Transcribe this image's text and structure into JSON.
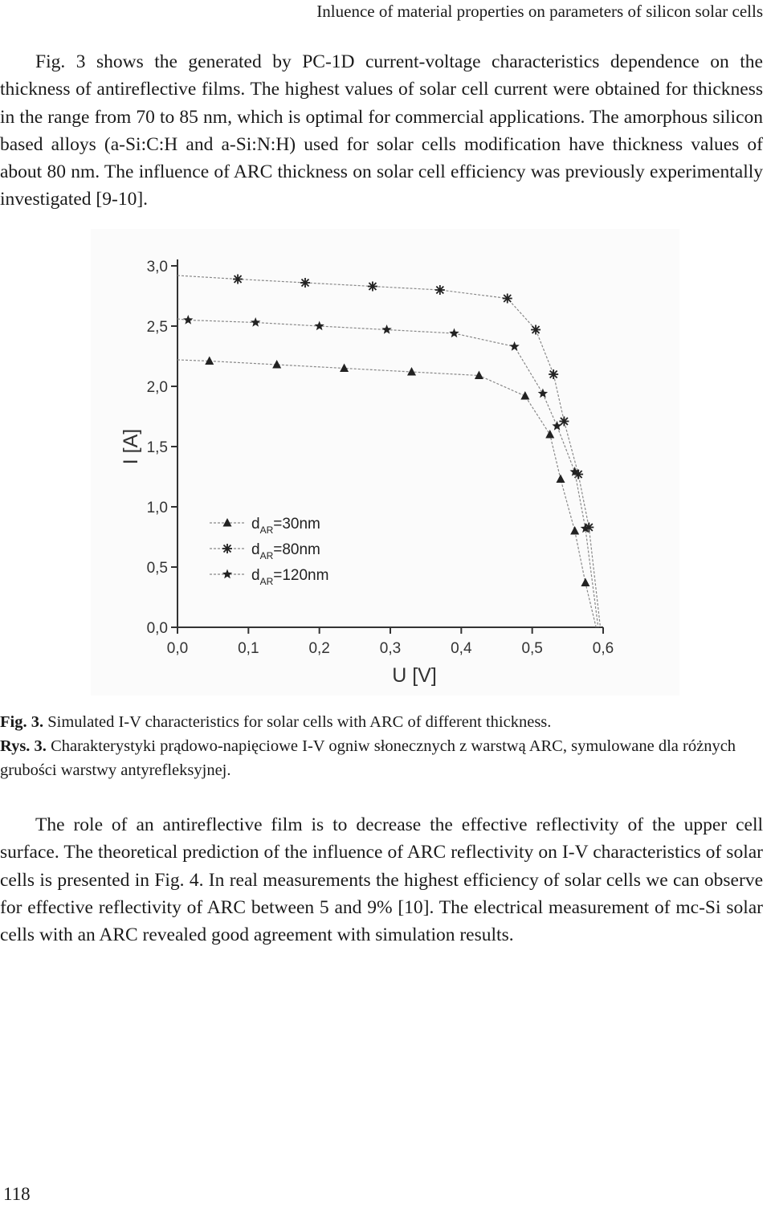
{
  "running_head": "Inluence of material properties on parameters of silicon solar cells",
  "paragraph1": "Fig. 3 shows the generated by PC-1D current-voltage characteristics dependence on the thickness of antireflective films. The highest values of solar cell current were obtained for thickness in the range from 70 to 85 nm, which is optimal for commercial applications. The amorphous silicon based alloys (a-Si:C:H and a-Si:N:H) used for solar cells modification have thickness values of about 80 nm. The influence of ARC thickness on solar cell efficiency was previously experimentally investigated [9-10].",
  "caption_en": {
    "label": "Fig. 3.",
    "text": "Simulated I-V characteristics for solar cells with ARC of different thickness."
  },
  "caption_pl": {
    "label": "Rys. 3.",
    "text": "Charakterystyki prądowo-napięciowe I-V ogniw słonecznych z warstwą ARC, symulowane dla różnych grubości warstwy antyrefleksyjnej."
  },
  "paragraph2": "The role of an antireflective film is to decrease the effective reflectivity of the upper cell surface. The theoretical prediction of the influence of ARC reflectivity on I-V characteristics of solar cells is presented in Fig. 4. In real measurements the highest efficiency of solar cells we can observe for effective reflectivity of ARC between 5 and 9% [10]. The electrical measurement of mc-Si solar cells with an ARC revealed good agreement with simulation results.",
  "page_number": "118",
  "chart_data": {
    "type": "line",
    "title": "",
    "xlabel": "U [V]",
    "ylabel": "I [A]",
    "xlim": [
      0.0,
      0.6
    ],
    "ylim": [
      0.0,
      3.0
    ],
    "x_ticks": [
      "0,0",
      "0,1",
      "0,2",
      "0,3",
      "0,4",
      "0,5",
      "0,6"
    ],
    "y_ticks": [
      "0,0",
      "0,5",
      "1,0",
      "1,5",
      "2,0",
      "2,5",
      "3,0"
    ],
    "grid": false,
    "legend_position": "lower-left",
    "series": [
      {
        "name": "=30nm",
        "name_prefix": "d",
        "name_subscript": "AR",
        "marker": "triangle",
        "x": [
          0.0,
          0.045,
          0.14,
          0.235,
          0.33,
          0.425,
          0.49,
          0.525,
          0.54,
          0.56,
          0.575,
          0.59
        ],
        "y": [
          2.22,
          2.21,
          2.18,
          2.15,
          2.12,
          2.09,
          1.92,
          1.6,
          1.23,
          0.8,
          0.37,
          0.0
        ]
      },
      {
        "name": "=80nm",
        "name_prefix": "d",
        "name_subscript": "AR",
        "marker": "asterisk",
        "x": [
          0.0,
          0.085,
          0.18,
          0.275,
          0.37,
          0.465,
          0.505,
          0.53,
          0.545,
          0.565,
          0.58,
          0.596
        ],
        "y": [
          2.92,
          2.89,
          2.86,
          2.83,
          2.8,
          2.73,
          2.47,
          2.1,
          1.71,
          1.27,
          0.83,
          0.0
        ]
      },
      {
        "name": "=120nm",
        "name_prefix": "d",
        "name_subscript": "AR",
        "marker": "star",
        "x": [
          0.0,
          0.015,
          0.11,
          0.2,
          0.295,
          0.39,
          0.475,
          0.515,
          0.535,
          0.56,
          0.575,
          0.593
        ],
        "y": [
          2.56,
          2.55,
          2.53,
          2.5,
          2.47,
          2.44,
          2.33,
          1.94,
          1.67,
          1.29,
          0.82,
          0.0
        ]
      }
    ]
  }
}
